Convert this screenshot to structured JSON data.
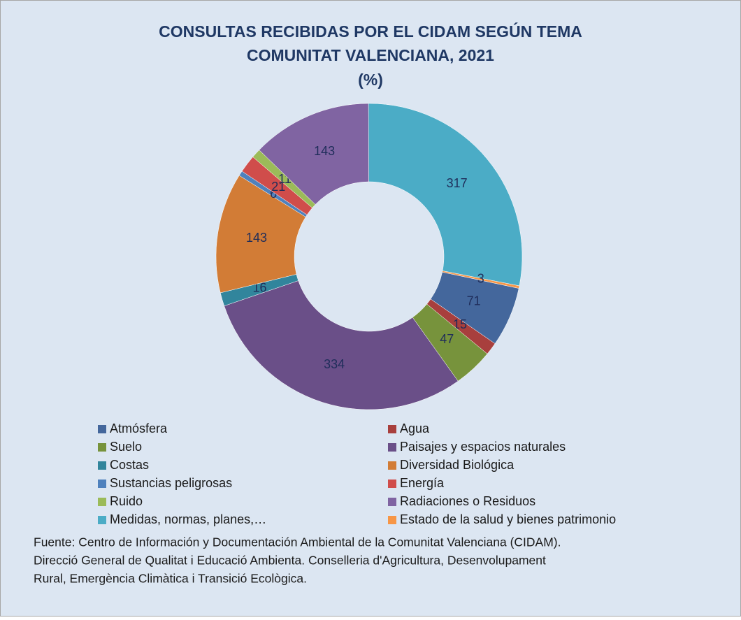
{
  "chart_data": {
    "type": "donut",
    "title": [
      "CONSULTAS RECIBIDAS POR EL CIDAM SEGÚN TEMA",
      "COMUNITAT VALENCIANA, 2021",
      "(%)"
    ],
    "categories": [
      "Atmósfera",
      "Agua",
      "Suelo",
      "Paisajes y espacios naturales",
      "Costas",
      "Diversidad Biológica",
      "Sustancias peligrosas",
      "Energía",
      "Ruido",
      "Radiaciones o Residuos",
      "Medidas, normas, planes,…",
      "Estado de la salud y bienes patrimonio"
    ],
    "values": [
      71,
      15,
      47,
      334,
      16,
      143,
      6,
      21,
      11,
      143,
      317,
      3
    ],
    "colors": [
      "#44679c",
      "#a83f3d",
      "#77933c",
      "#6a4f88",
      "#31859c",
      "#d27c36",
      "#4f81bd",
      "#d04d4b",
      "#9bbb59",
      "#8064a2",
      "#4bacc6",
      "#f79646"
    ],
    "first_slice_angle": 102,
    "legend": "bottom",
    "source": [
      "Fuente: Centro de Información y Documentación Ambiental de la Comunitat Valenciana (CIDAM).",
      "Direcció General de Qualitat i Educació Ambienta. Conselleria d'Agricultura, Desenvolupament",
      "Rural, Emergència Climàtica i Transició Ecològica."
    ]
  }
}
